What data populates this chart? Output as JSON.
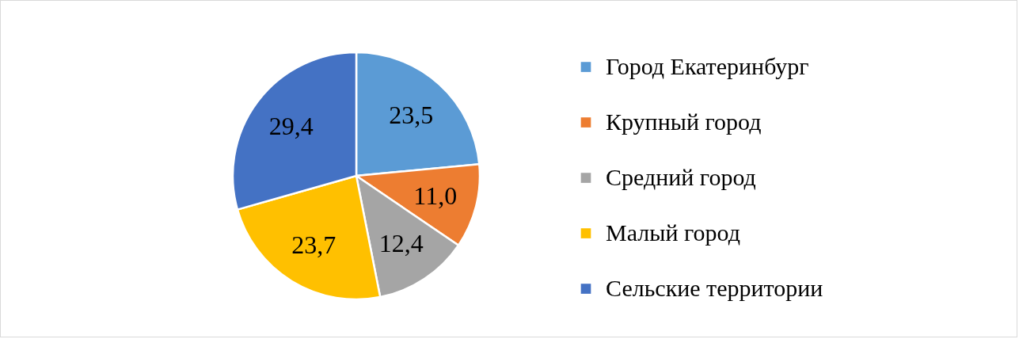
{
  "chart_data": {
    "type": "pie",
    "categories": [
      "Город Екатеринбург",
      "Крупный город",
      "Средний город",
      "Малый город",
      "Сельские территории"
    ],
    "values": [
      23.5,
      11.0,
      12.4,
      23.7,
      29.4
    ],
    "value_labels": [
      "23,5",
      "11,0",
      "12,4",
      "23,7",
      "29,4"
    ],
    "colors": [
      "#5b9bd5",
      "#ed7d31",
      "#a5a5a5",
      "#ffc000",
      "#4472c4"
    ],
    "legend": "right"
  }
}
